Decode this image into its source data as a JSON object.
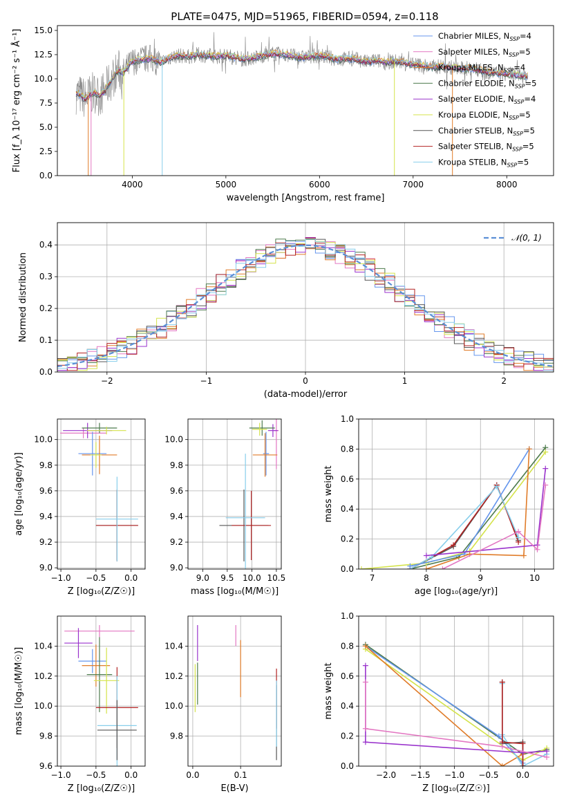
{
  "colors": {
    "chabrier_miles": "#6495ed",
    "salpeter_miles": "#e377c2",
    "kroupa_miles": "#e07b28",
    "chabrier_elodie": "#4c7a4c",
    "salpeter_elodie": "#9932cc",
    "kroupa_elodie": "#d4e34a",
    "chabrier_stelib": "#555555",
    "salpeter_stelib": "#b22222",
    "kroupa_stelib": "#87ceeb",
    "gaussian": "#5b8fd6",
    "spectrum_data": "#808080"
  },
  "chart_data": [
    {
      "id": "spectrum",
      "type": "line",
      "title": "PLATE=0475, MJD=51965, FIBERID=0594, z=0.118",
      "xlabel": "wavelength [Angstrom, rest frame]",
      "ylabel": "Flux [f_λ 10⁻¹⁷ erg cm⁻² s⁻¹ Å⁻¹]",
      "xlim": [
        3200,
        8500
      ],
      "ylim": [
        0,
        15.5
      ],
      "xticks": [
        4000,
        5000,
        6000,
        7000,
        8000
      ],
      "yticks": [
        0.0,
        2.5,
        5.0,
        7.5,
        10.0,
        12.5,
        15.0
      ],
      "grid": false,
      "legend_position": "top-right",
      "legend": [
        {
          "label": "Chabrier MILES, N",
          "sub": "SSP",
          "suffix": "=4",
          "color_key": "chabrier_miles"
        },
        {
          "label": "Salpeter MILES, N",
          "sub": "SSP",
          "suffix": "=5",
          "color_key": "salpeter_miles"
        },
        {
          "label": "Kroupa MILES, N",
          "sub": "SSP",
          "suffix": "=4",
          "color_key": "kroupa_miles"
        },
        {
          "label": "Chabrier ELODIE, N",
          "sub": "SSP",
          "suffix": "=5",
          "color_key": "chabrier_elodie"
        },
        {
          "label": "Salpeter ELODIE, N",
          "sub": "SSP",
          "suffix": "=4",
          "color_key": "salpeter_elodie"
        },
        {
          "label": "Kroupa ELODIE, N",
          "sub": "SSP",
          "suffix": "=5",
          "color_key": "kroupa_elodie"
        },
        {
          "label": "Chabrier STELIB, N",
          "sub": "SSP",
          "suffix": "=5",
          "color_key": "chabrier_stelib"
        },
        {
          "label": "Salpeter STELIB, N",
          "sub": "SSP",
          "suffix": "=5",
          "color_key": "salpeter_stelib"
        },
        {
          "label": "Kroupa STELIB, N",
          "sub": "SSP",
          "suffix": "=5",
          "color_key": "kroupa_stelib"
        }
      ],
      "data_curve_xy": [
        [
          3400,
          8.5
        ],
        [
          3450,
          8.3
        ],
        [
          3500,
          7.9
        ],
        [
          3550,
          8.4
        ],
        [
          3600,
          8.6
        ],
        [
          3650,
          8.2
        ],
        [
          3700,
          8.7
        ],
        [
          3750,
          9.5
        ],
        [
          3800,
          10.2
        ],
        [
          3850,
          10.9
        ],
        [
          3900,
          10.6
        ],
        [
          3950,
          11.2
        ],
        [
          4000,
          11.8
        ],
        [
          4100,
          12.0
        ],
        [
          4200,
          12.1
        ],
        [
          4300,
          11.7
        ],
        [
          4400,
          12.2
        ],
        [
          4500,
          12.4
        ],
        [
          4600,
          12.3
        ],
        [
          4700,
          12.5
        ],
        [
          4800,
          12.4
        ],
        [
          4900,
          12.3
        ],
        [
          5000,
          12.4
        ],
        [
          5100,
          12.2
        ],
        [
          5200,
          12.0
        ],
        [
          5300,
          12.2
        ],
        [
          5400,
          12.4
        ],
        [
          5500,
          12.6
        ],
        [
          5600,
          12.5
        ],
        [
          5700,
          12.4
        ],
        [
          5800,
          12.2
        ],
        [
          5900,
          12.3
        ],
        [
          6000,
          12.4
        ],
        [
          6100,
          12.2
        ],
        [
          6200,
          12.0
        ],
        [
          6300,
          12.1
        ],
        [
          6400,
          12.0
        ],
        [
          6500,
          11.7
        ],
        [
          6600,
          11.9
        ],
        [
          6700,
          11.7
        ],
        [
          6800,
          11.8
        ],
        [
          6900,
          11.7
        ],
        [
          7000,
          11.5
        ],
        [
          7100,
          11.4
        ],
        [
          7200,
          11.2
        ],
        [
          7300,
          11.3
        ],
        [
          7400,
          11.2
        ],
        [
          7500,
          11.0
        ],
        [
          7600,
          11.1
        ],
        [
          7700,
          10.9
        ],
        [
          7800,
          10.7
        ],
        [
          7900,
          10.6
        ],
        [
          8000,
          10.5
        ],
        [
          8100,
          10.4
        ],
        [
          8200,
          10.3
        ]
      ]
    },
    {
      "id": "residuals",
      "type": "histogram",
      "xlabel": "(data-model)/error",
      "ylabel": "Normed distribution",
      "xlim": [
        -2.5,
        2.5
      ],
      "ylim": [
        0,
        0.47
      ],
      "xticks": [
        -2,
        -1,
        0,
        1,
        2
      ],
      "yticks": [
        0.0,
        0.1,
        0.2,
        0.3,
        0.4
      ],
      "grid": true,
      "legend_position": "top-right",
      "legend_label": "𝒩(0, 1)",
      "bin_start": -2.5,
      "bin_width": 0.1,
      "gaussian_mu": 0,
      "gaussian_sigma": 1
    },
    {
      "id": "age_vs_Z",
      "type": "scatter",
      "xlabel": "Z [log₁₀(Z/Z☉)]",
      "ylabel": "age  [log₁₀(age/yr)]",
      "xlim": [
        -1.05,
        0.2
      ],
      "ylim": [
        8.99,
        10.16
      ],
      "xticks": [
        -1.0,
        -0.5,
        0.0
      ],
      "yticks": [
        9.0,
        9.2,
        9.4,
        9.6,
        9.8,
        10.0
      ],
      "grid": true,
      "points": [
        {
          "color_key": "salpeter_miles",
          "x": -0.68,
          "xerr": 0.33,
          "y": 10.05,
          "yerr": 0.04
        },
        {
          "color_key": "salpeter_elodie",
          "x": -0.62,
          "xerr": 0.35,
          "y": 10.07,
          "yerr": 0.06
        },
        {
          "color_key": "chabrier_elodie",
          "x": -0.45,
          "xerr": 0.25,
          "y": 10.09,
          "yerr": 0.04
        },
        {
          "color_key": "kroupa_elodie",
          "x": -0.35,
          "xerr": 0.28,
          "y": 10.07,
          "yerr": 0.03
        },
        {
          "color_key": "chabrier_miles",
          "x": -0.55,
          "xerr": 0.2,
          "y": 9.89,
          "yerr": 0.17
        },
        {
          "color_key": "kroupa_miles",
          "x": -0.45,
          "xerr": 0.25,
          "y": 9.88,
          "yerr": 0.15
        },
        {
          "color_key": "kroupa_elodie",
          "x": -0.5,
          "xerr": 0.08,
          "y": 9.88,
          "yerr": 0.1
        },
        {
          "color_key": "chabrier_stelib",
          "x": -0.2,
          "xerr": 0.3,
          "y": 9.33,
          "yerr": 0.27
        },
        {
          "color_key": "salpeter_stelib",
          "x": -0.2,
          "xerr": 0.3,
          "y": 9.33,
          "yerr": 0.28
        },
        {
          "color_key": "kroupa_stelib",
          "x": -0.2,
          "xerr": 0.3,
          "y": 9.38,
          "yerr": 0.33
        }
      ]
    },
    {
      "id": "age_vs_mass",
      "type": "scatter",
      "xlabel": "mass [log₁₀(M/M☉)]",
      "ylabel": "",
      "xlim": [
        8.7,
        10.6
      ],
      "ylim": [
        8.99,
        10.16
      ],
      "xticks": [
        9.0,
        9.5,
        10.0,
        10.5
      ],
      "yticks": [
        9.0,
        9.2,
        9.4,
        9.6,
        9.8,
        10.0
      ],
      "grid": true,
      "points": [
        {
          "color_key": "salpeter_miles",
          "x": 10.5,
          "xerr": 0.05,
          "y": 10.07,
          "yerr": 0.3
        },
        {
          "color_key": "salpeter_elodie",
          "x": 10.43,
          "xerr": 0.1,
          "y": 10.07,
          "yerr": 0.05
        },
        {
          "color_key": "chabrier_elodie",
          "x": 10.21,
          "xerr": 0.26,
          "y": 10.09,
          "yerr": 0.06
        },
        {
          "color_key": "kroupa_elodie",
          "x": 10.16,
          "xerr": 0.15,
          "y": 10.08,
          "yerr": 0.05
        },
        {
          "color_key": "chabrier_miles",
          "x": 10.29,
          "xerr": 0.06,
          "y": 9.89,
          "yerr": 0.17
        },
        {
          "color_key": "kroupa_miles",
          "x": 10.27,
          "xerr": 0.25,
          "y": 9.88,
          "yerr": 0.17
        },
        {
          "color_key": "chabrier_stelib",
          "x": 9.84,
          "xerr": 0.5,
          "y": 9.33,
          "yerr": 0.28
        },
        {
          "color_key": "salpeter_stelib",
          "x": 9.99,
          "xerr": 0.4,
          "y": 9.33,
          "yerr": 0.27
        },
        {
          "color_key": "kroupa_stelib",
          "x": 9.87,
          "xerr": 0.4,
          "y": 9.39,
          "yerr": 0.5
        }
      ]
    },
    {
      "id": "mass_weight_vs_age",
      "type": "line",
      "xlabel": "age  [log₁₀(age/yr)]",
      "ylabel": "mass weight",
      "xlim": [
        6.75,
        10.35
      ],
      "ylim": [
        0,
        1.0
      ],
      "xticks": [
        7,
        8,
        9,
        10
      ],
      "yticks": [
        0.0,
        0.2,
        0.4,
        0.6,
        0.8,
        1.0
      ],
      "grid": true,
      "series": [
        {
          "color_key": "chabrier_elodie",
          "x": [
            7.7,
            8.6,
            10.2
          ],
          "y": [
            0.0,
            0.08,
            0.81
          ]
        },
        {
          "color_key": "chabrier_stelib",
          "x": [
            7.7,
            8.5,
            9.3,
            9.7
          ],
          "y": [
            0.0,
            0.15,
            0.56,
            0.19
          ]
        },
        {
          "color_key": "salpeter_stelib",
          "x": [
            7.7,
            8.5,
            9.3,
            9.7
          ],
          "y": [
            0.0,
            0.16,
            0.56,
            0.18
          ]
        },
        {
          "color_key": "kroupa_stelib",
          "x": [
            7.7,
            8.1,
            9.3,
            9.7
          ],
          "y": [
            0.0,
            0.08,
            0.55,
            0.21
          ]
        },
        {
          "color_key": "kroupa_elodie",
          "x": [
            6.8,
            8.0,
            8.8,
            10.2
          ],
          "y": [
            0.0,
            0.04,
            0.12,
            0.78
          ]
        },
        {
          "color_key": "chabrier_miles",
          "x": [
            7.7,
            8.7,
            9.9
          ],
          "y": [
            0.02,
            0.1,
            0.8
          ]
        },
        {
          "color_key": "kroupa_miles",
          "x": [
            8.0,
            8.8,
            9.8,
            9.9
          ],
          "y": [
            0.0,
            0.1,
            0.09,
            0.8
          ]
        },
        {
          "color_key": "salpeter_elodie",
          "x": [
            8.0,
            10.05,
            10.2
          ],
          "y": [
            0.09,
            0.16,
            0.67
          ]
        },
        {
          "color_key": "salpeter_miles",
          "x": [
            8.3,
            9.7,
            10.05,
            10.2
          ],
          "y": [
            0.0,
            0.25,
            0.13,
            0.56
          ]
        }
      ]
    },
    {
      "id": "mass_vs_Z",
      "type": "scatter",
      "xlabel": "Z [log₁₀(Z/Z☉)]",
      "ylabel": "mass [log₁₀(M/M☉)]",
      "xlim": [
        -1.05,
        0.2
      ],
      "ylim": [
        9.6,
        10.6
      ],
      "xticks": [
        -1.0,
        -0.5,
        0.0
      ],
      "yticks": [
        9.6,
        9.8,
        10.0,
        10.2,
        10.4
      ],
      "grid": true,
      "points": [
        {
          "color_key": "salpeter_miles",
          "x": -0.45,
          "xerr": 0.5,
          "y": 10.5,
          "yerr": 0.04
        },
        {
          "color_key": "salpeter_elodie",
          "x": -0.75,
          "xerr": 0.2,
          "y": 10.42,
          "yerr": 0.1
        },
        {
          "color_key": "chabrier_miles",
          "x": -0.55,
          "xerr": 0.2,
          "y": 10.3,
          "yerr": 0.08
        },
        {
          "color_key": "kroupa_miles",
          "x": -0.5,
          "xerr": 0.2,
          "y": 10.27,
          "yerr": 0.14
        },
        {
          "color_key": "chabrier_elodie",
          "x": -0.45,
          "xerr": 0.18,
          "y": 10.21,
          "yerr": 0.25
        },
        {
          "color_key": "kroupa_elodie",
          "x": -0.35,
          "xerr": 0.18,
          "y": 10.17,
          "yerr": 0.22
        },
        {
          "color_key": "salpeter_stelib",
          "x": -0.2,
          "xerr": 0.3,
          "y": 9.99,
          "yerr": 0.27
        },
        {
          "color_key": "kroupa_stelib",
          "x": -0.2,
          "xerr": 0.28,
          "y": 9.87,
          "yerr": 0.33
        },
        {
          "color_key": "chabrier_stelib",
          "x": -0.2,
          "xerr": 0.28,
          "y": 9.84,
          "yerr": 0.2
        }
      ]
    },
    {
      "id": "mass_vs_ebv",
      "type": "scatter",
      "xlabel": "E(B-V)",
      "ylabel": "",
      "xlim": [
        -0.01,
        0.185
      ],
      "ylim": [
        9.6,
        10.6
      ],
      "xticks": [
        0.0,
        0.1
      ],
      "yticks": [
        9.8,
        10.0,
        10.2,
        10.4
      ],
      "grid": true,
      "points": [
        {
          "color_key": "salpeter_elodie",
          "x": 0.01,
          "xerr": 0,
          "y": 10.42,
          "yerr": 0.12
        },
        {
          "color_key": "kroupa_elodie",
          "x": 0.005,
          "xerr": 0,
          "y": 10.12,
          "yerr": 0.16
        },
        {
          "color_key": "chabrier_elodie",
          "x": 0.01,
          "xerr": 0,
          "y": 10.15,
          "yerr": 0.14
        },
        {
          "color_key": "salpeter_miles",
          "x": 0.09,
          "xerr": 0,
          "y": 10.47,
          "yerr": 0.07
        },
        {
          "color_key": "kroupa_miles",
          "x": 0.1,
          "xerr": 0,
          "y": 10.25,
          "yerr": 0.19
        },
        {
          "color_key": "salpeter_stelib",
          "x": 0.175,
          "xerr": 0,
          "y": 10.05,
          "yerr": 0.2
        },
        {
          "color_key": "chabrier_stelib",
          "x": 0.175,
          "xerr": 0,
          "y": 9.89,
          "yerr": 0.25
        },
        {
          "color_key": "kroupa_stelib",
          "x": 0.175,
          "xerr": 0,
          "y": 9.95,
          "yerr": 0.22
        }
      ]
    },
    {
      "id": "mass_weight_vs_Z",
      "type": "line",
      "xlabel": "Z [log₁₀(Z/Z☉)]",
      "ylabel": "mass weight",
      "xlim": [
        -2.4,
        0.45
      ],
      "ylim": [
        0,
        1.0
      ],
      "xticks": [
        -2.0,
        -1.5,
        -1.0,
        -0.5,
        0.0
      ],
      "yticks": [
        0.0,
        0.2,
        0.4,
        0.6,
        0.8,
        1.0
      ],
      "grid": true,
      "series": [
        {
          "color_key": "chabrier_elodie",
          "x": [
            -2.3,
            0.0,
            0.35
          ],
          "y": [
            0.81,
            0.08,
            0.11
          ]
        },
        {
          "color_key": "kroupa_elodie",
          "x": [
            -2.3,
            0.0,
            0.35
          ],
          "y": [
            0.78,
            0.04,
            0.12
          ]
        },
        {
          "color_key": "chabrier_miles",
          "x": [
            -2.3,
            -0.35,
            0.0
          ],
          "y": [
            0.8,
            0.2,
            0.02
          ]
        },
        {
          "color_key": "kroupa_miles",
          "x": [
            -2.3,
            -0.3,
            0.0
          ],
          "y": [
            0.8,
            0.0,
            0.08
          ]
        },
        {
          "color_key": "kroupa_stelib",
          "x": [
            -0.3,
            -0.3,
            0.0,
            0.35
          ],
          "y": [
            0.55,
            0.21,
            0.0,
            0.08
          ]
        },
        {
          "color_key": "chabrier_stelib",
          "x": [
            -0.3,
            -0.3,
            0.0,
            0.0
          ],
          "y": [
            0.56,
            0.15,
            0.16,
            0.0
          ]
        },
        {
          "color_key": "salpeter_stelib",
          "x": [
            -0.3,
            -0.3,
            0.0,
            0.0
          ],
          "y": [
            0.56,
            0.16,
            0.15,
            0.0
          ]
        },
        {
          "color_key": "salpeter_elodie",
          "x": [
            -2.3,
            -2.3,
            0.0,
            0.35
          ],
          "y": [
            0.67,
            0.16,
            0.09,
            0.1
          ]
        },
        {
          "color_key": "salpeter_miles",
          "x": [
            -2.3,
            -2.3,
            -0.3,
            0.35
          ],
          "y": [
            0.56,
            0.25,
            0.13,
            0.06
          ]
        }
      ]
    }
  ]
}
